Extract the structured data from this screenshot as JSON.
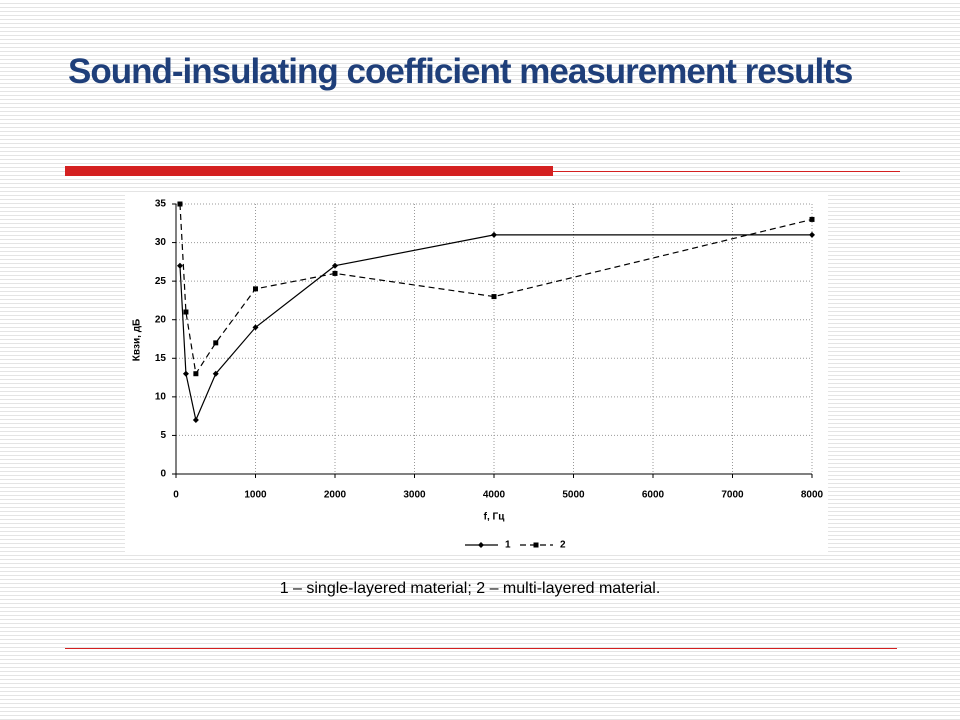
{
  "title": "Sound-insulating coefficient measurement results",
  "chart_data": {
    "type": "line",
    "x": [
      50,
      125,
      250,
      500,
      1000,
      2000,
      4000,
      8000
    ],
    "series": [
      {
        "name": "1",
        "color": "#000000",
        "marker": "diamond",
        "dash": false,
        "values": [
          27,
          13,
          7,
          13,
          19,
          27,
          31,
          31
        ]
      },
      {
        "name": "2",
        "color": "#000000",
        "marker": "square",
        "dash": true,
        "values": [
          35,
          21,
          13,
          17,
          24,
          26,
          23,
          33
        ]
      }
    ],
    "xlabel": "f, Гц",
    "ylabel": "Квзи, дБ",
    "xlim": [
      0,
      8000
    ],
    "xticks": [
      0,
      1000,
      2000,
      3000,
      4000,
      5000,
      6000,
      7000,
      8000
    ],
    "ylim": [
      0,
      35
    ],
    "yticks": [
      0,
      5,
      10,
      15,
      20,
      25,
      30,
      35
    ],
    "grid": true,
    "legend": "bottom"
  },
  "caption": "1 – single-layered material; 2 – multi-layered material."
}
